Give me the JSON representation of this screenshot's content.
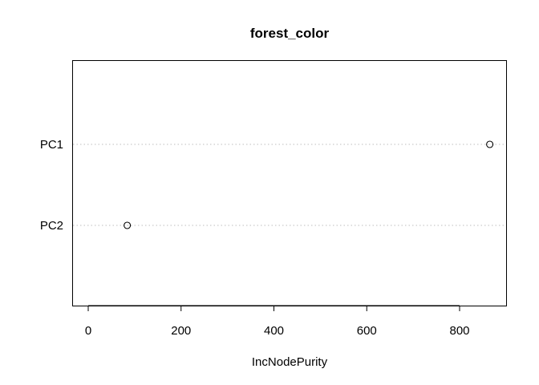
{
  "chart_data": {
    "type": "scatter",
    "title": "forest_color",
    "xlabel": "IncNodePurity",
    "ylabel": "",
    "categories": [
      "PC1",
      "PC2"
    ],
    "values": [
      865,
      84
    ],
    "x_ticks": [
      0,
      200,
      400,
      600,
      800
    ],
    "xlim": [
      -30,
      900
    ],
    "grid": false,
    "legend": "none",
    "point_style": "open-circle",
    "guide_line_style": "dotted",
    "colors": {
      "axis": "#000000",
      "guide": "#bebebe",
      "point_stroke": "#000000"
    }
  }
}
